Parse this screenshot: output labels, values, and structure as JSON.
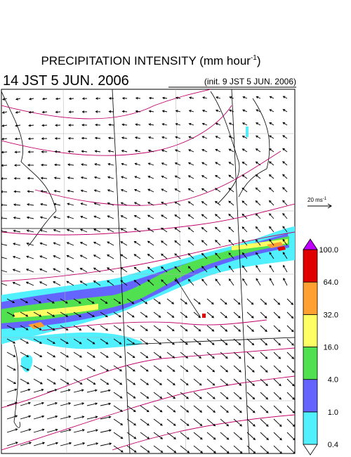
{
  "title": {
    "text": "PRECIPITATION INTENSITY (mm hour",
    "sup": "-1",
    "close": ")"
  },
  "valid_time": "14 JST 5 JUN. 2006",
  "init_time": "(init. 9 JST 5 JUN. 2006)",
  "wind_scale": {
    "text": "20 ms",
    "sup": "-1"
  },
  "color_bar": {
    "labels": [
      "0.4",
      "1.0",
      "4.0",
      "16.0",
      "32.0",
      "64.0",
      "100.0"
    ],
    "colors": [
      "#ffffff",
      "#50f0ff",
      "#6464ff",
      "#50e050",
      "#ffff64",
      "#ffa030",
      "#e00000",
      "#c000ff"
    ]
  }
}
